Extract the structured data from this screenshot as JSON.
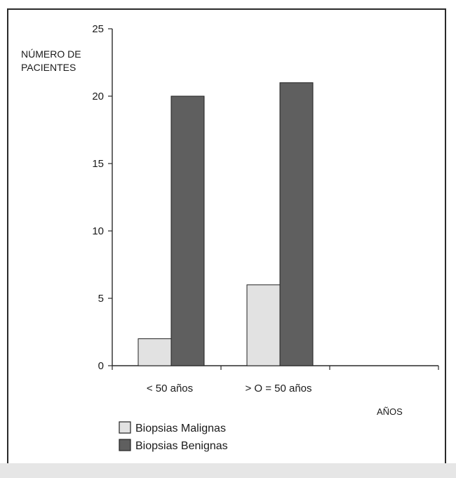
{
  "chart_data": {
    "type": "bar",
    "categories": [
      "< 50 años",
      "> O = 50 años",
      ""
    ],
    "series": [
      {
        "name": "Biopsias Malignas",
        "values": [
          2,
          6,
          0
        ],
        "color": "#e2e2e2"
      },
      {
        "name": "Biopsias Benignas",
        "values": [
          20,
          21,
          0
        ],
        "color": "#5f5f5f"
      }
    ],
    "ylabel_line1": "NÚMERO DE",
    "ylabel_line2": "PACIENTES",
    "xlabel": "AÑOS",
    "ylim": [
      0,
      25
    ],
    "yticks": [
      0,
      5,
      10,
      15,
      20,
      25
    ],
    "grid": false,
    "legend_position": "bottom-left"
  }
}
